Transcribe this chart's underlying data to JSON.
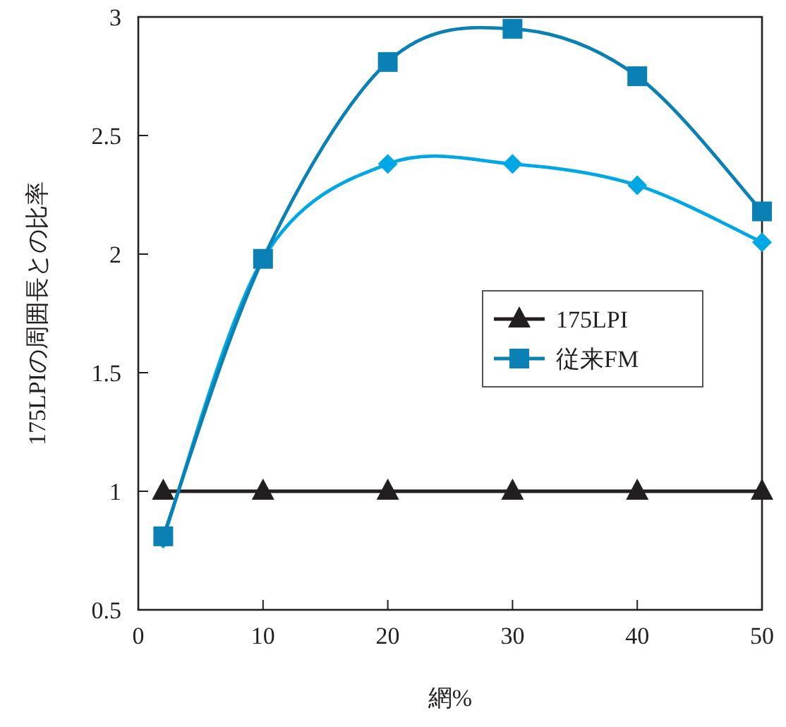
{
  "chart_data": {
    "type": "line",
    "xlabel": "網%",
    "ylabel": "175LPIの周囲長との比率",
    "x": [
      2,
      10,
      20,
      30,
      40,
      50
    ],
    "series": [
      {
        "color": "#00a7e5",
        "marker": "diamond",
        "values": [
          0.8,
          1.98,
          2.38,
          2.38,
          2.29,
          2.05
        ]
      },
      {
        "name": "175LPI",
        "color": "#231f20",
        "marker": "triangle",
        "values": [
          1,
          1,
          1,
          1,
          1,
          1
        ]
      },
      {
        "name": "従来FM",
        "color": "#0a80b4",
        "marker": "square",
        "values": [
          0.81,
          1.98,
          2.81,
          2.95,
          2.75,
          2.18
        ]
      }
    ],
    "xlim": [
      0,
      50
    ],
    "xticks": [
      0,
      10,
      20,
      30,
      40,
      50
    ],
    "ylim": [
      0.5,
      3
    ],
    "yticks": [
      0.5,
      1,
      1.5,
      2,
      2.5,
      3
    ],
    "grid": false,
    "legend": "right",
    "line_style": "solid"
  }
}
